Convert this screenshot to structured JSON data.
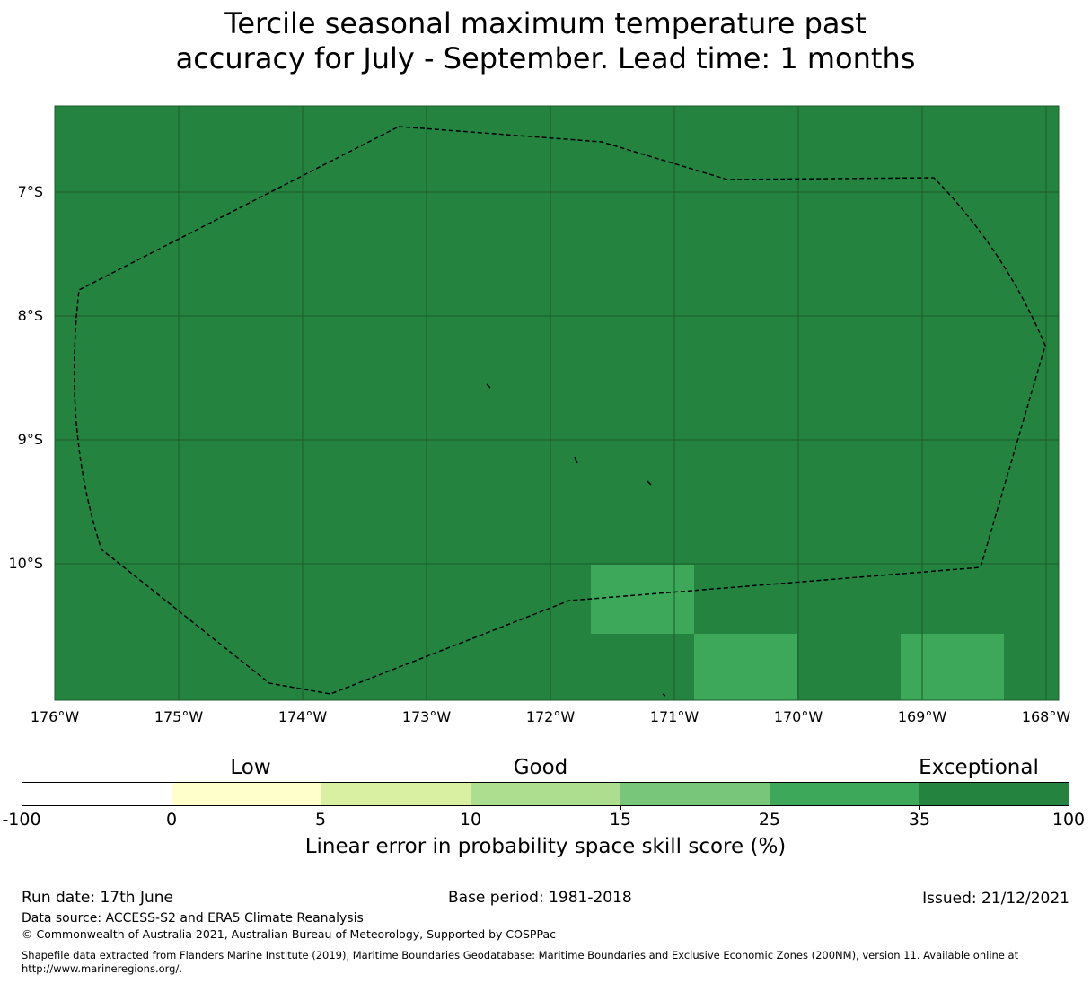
{
  "title": {
    "line1": "Tercile seasonal maximum temperature past",
    "line2": "accuracy for July - September. Lead time: 1 months"
  },
  "map": {
    "background_color": "#24843f",
    "highlight_color": "#3ea85a",
    "lat_labels": [
      "7°S",
      "8°S",
      "9°S",
      "10°S"
    ],
    "lon_labels": [
      "176°W",
      "175°W",
      "174°W",
      "173°W",
      "172°W",
      "171°W",
      "170°W",
      "169°W",
      "168°W"
    ]
  },
  "legend": {
    "categories": [
      "Low",
      "Good",
      "Exceptional"
    ],
    "ticks": [
      "-100",
      "0",
      "5",
      "10",
      "15",
      "25",
      "35",
      "100"
    ],
    "colors": [
      "#ffffff",
      "#ffffcc",
      "#d9f0a3",
      "#addd8e",
      "#78c679",
      "#3ea85a",
      "#24843f"
    ],
    "label": "Linear error in probability space skill score (%)"
  },
  "footer": {
    "run_date": "Run date: 17th June",
    "base_period": "Base period: 1981-2018",
    "issued": "Issued: 21/12/2021",
    "data_source": "Data source: ACCESS-S2 and ERA5 Climate Reanalysis",
    "copyright": "© Commonwealth of Australia 2021, Australian Bureau of Meteorology, Supported by COSPPac",
    "shapefile": "Shapefile data extracted from Flanders Marine Institute (2019), Maritime Boundaries Geodatabase: Maritime Boundaries and Exclusive Economic Zones (200NM), version 11. Available online at http://www.marineregions.org/."
  }
}
